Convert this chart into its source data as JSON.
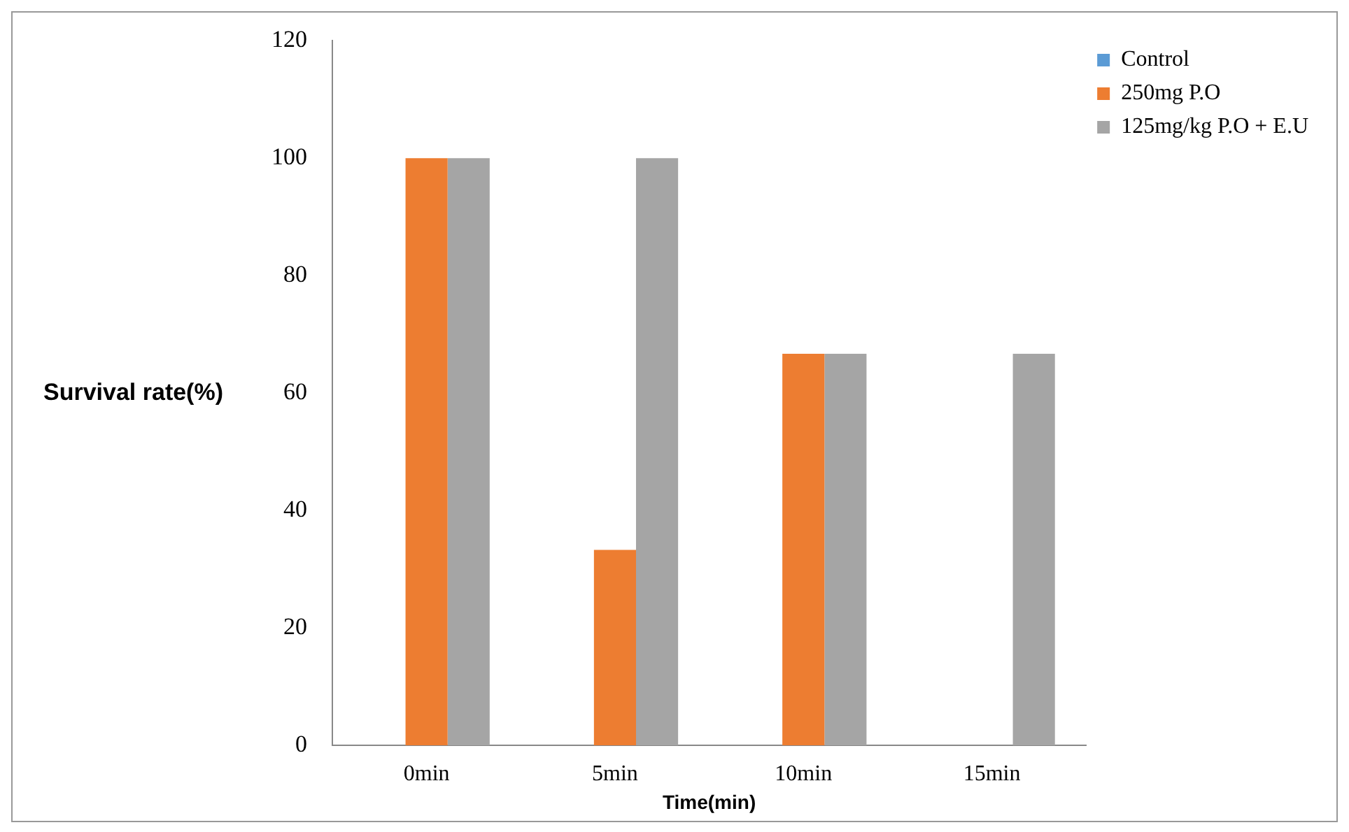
{
  "chart_data": {
    "type": "bar",
    "xlabel": "Time(min)",
    "ylabel": "Survival rate(%)",
    "categories": [
      "0min",
      "5min",
      "10min",
      "15min"
    ],
    "series": [
      {
        "name": "Control",
        "color": "#5b9bd5",
        "values": [
          0,
          0,
          0,
          0
        ]
      },
      {
        "name": "250mg P.O",
        "color": "#ed7d31",
        "values": [
          100,
          33.3,
          66.7,
          0
        ]
      },
      {
        "name": "125mg/kg P.O + E.U",
        "color": "#a5a5a5",
        "values": [
          100,
          100,
          66.7,
          66.7
        ]
      }
    ],
    "ylim": [
      0,
      120
    ],
    "yticks": [
      0,
      20,
      40,
      60,
      80,
      100,
      120
    ],
    "grid": false,
    "legend": "right"
  }
}
